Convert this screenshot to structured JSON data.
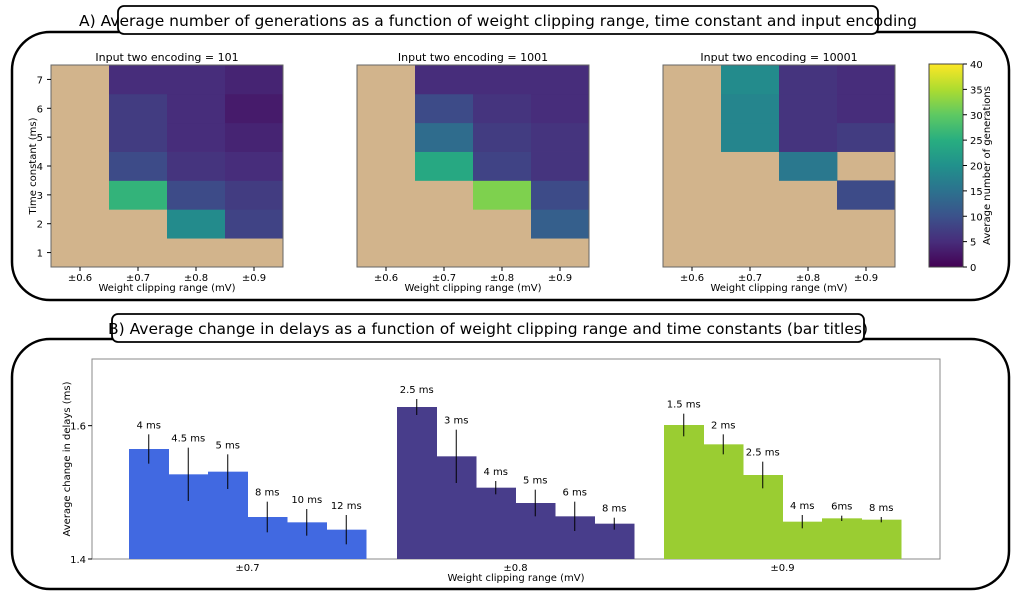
{
  "section_a": {
    "header": "A) Average number of generations as a function of weight clipping range, time constant and input encoding"
  },
  "section_b": {
    "header": "B) Average change in delays as a function of weight clipping range and time constants (bar titles)"
  },
  "colors": {
    "sand": "#d2b48c",
    "blue": "#4169e1",
    "dark_purple": "#483d8b",
    "yellow_green": "#9acd32"
  },
  "chart_data": [
    {
      "type": "heatmap",
      "title": "Input two encoding = 101",
      "xlabel": "Weight clipping range (mV)",
      "ylabel": "Time constant (ms)",
      "x_categories": [
        "±0.6",
        "±0.7",
        "±0.8",
        "±0.9"
      ],
      "y_categories": [
        "1",
        "2",
        "3",
        "4",
        "5",
        "6",
        "7"
      ],
      "missing_color": "#d2b48c",
      "values": [
        [
          null,
          null,
          null,
          null
        ],
        [
          null,
          null,
          19,
          8
        ],
        [
          null,
          26,
          9,
          7
        ],
        [
          null,
          9,
          6,
          5
        ],
        [
          null,
          7,
          5,
          4
        ],
        [
          null,
          7,
          5,
          3
        ],
        [
          null,
          5,
          5,
          4
        ]
      ]
    },
    {
      "type": "heatmap",
      "title": "Input two encoding = 1001",
      "xlabel": "Weight clipping range (mV)",
      "ylabel": "",
      "x_categories": [
        "±0.6",
        "±0.7",
        "±0.8",
        "±0.9"
      ],
      "y_categories": [
        "1",
        "2",
        "3",
        "4",
        "5",
        "6",
        "7"
      ],
      "missing_color": "#d2b48c",
      "values": [
        [
          null,
          null,
          null,
          null
        ],
        [
          null,
          null,
          null,
          12
        ],
        [
          null,
          null,
          32,
          9
        ],
        [
          null,
          24,
          8,
          6
        ],
        [
          null,
          14,
          7,
          6
        ],
        [
          null,
          9,
          6,
          5
        ],
        [
          null,
          5,
          5,
          5
        ]
      ]
    },
    {
      "type": "heatmap",
      "title": "Input two encoding = 10001",
      "xlabel": "Weight clipping range (mV)",
      "ylabel": "",
      "x_categories": [
        "±0.6",
        "±0.7",
        "±0.8",
        "±0.9"
      ],
      "y_categories": [
        "1",
        "2",
        "3",
        "4",
        "5",
        "6",
        "7"
      ],
      "missing_color": "#d2b48c",
      "values": [
        [
          null,
          null,
          null,
          null
        ],
        [
          null,
          null,
          null,
          null
        ],
        [
          null,
          null,
          null,
          9
        ],
        [
          null,
          null,
          16,
          null
        ],
        [
          null,
          18,
          6,
          7
        ],
        [
          null,
          18,
          6,
          5
        ],
        [
          null,
          19,
          6,
          5
        ]
      ]
    },
    {
      "type": "colorbar",
      "label": "Average number of generations",
      "range": [
        0,
        40
      ],
      "ticks": [
        "0",
        "5",
        "10",
        "15",
        "20",
        "25",
        "30",
        "35",
        "40"
      ],
      "colormap": "viridis"
    },
    {
      "type": "bar",
      "xlabel": "Weight clipping range (mV)",
      "ylabel": "Average change in delays (ms)",
      "ylim": [
        1.4,
        1.7
      ],
      "yticks": [
        "1.4",
        "1.6"
      ],
      "groups": [
        {
          "name": "±0.7",
          "color": "#4169e1",
          "bars": [
            {
              "label": "4 ms",
              "value": 1.565,
              "err": 0.022
            },
            {
              "label": "4.5 ms",
              "value": 1.527,
              "err": 0.04
            },
            {
              "label": "5 ms",
              "value": 1.531,
              "err": 0.026
            },
            {
              "label": "8 ms",
              "value": 1.463,
              "err": 0.023
            },
            {
              "label": "10 ms",
              "value": 1.455,
              "err": 0.02
            },
            {
              "label": "12 ms",
              "value": 1.444,
              "err": 0.022
            }
          ]
        },
        {
          "name": "±0.8",
          "color": "#483d8b",
          "bars": [
            {
              "label": "2.5 ms",
              "value": 1.628,
              "err": 0.012
            },
            {
              "label": "3 ms",
              "value": 1.554,
              "err": 0.04
            },
            {
              "label": "4 ms",
              "value": 1.507,
              "err": 0.01
            },
            {
              "label": "5 ms",
              "value": 1.484,
              "err": 0.02
            },
            {
              "label": "6 ms",
              "value": 1.464,
              "err": 0.022
            },
            {
              "label": "8 ms",
              "value": 1.453,
              "err": 0.009
            }
          ]
        },
        {
          "name": "±0.9",
          "color": "#9acd32",
          "bars": [
            {
              "label": "1.5 ms",
              "value": 1.601,
              "err": 0.017
            },
            {
              "label": "2 ms",
              "value": 1.572,
              "err": 0.015
            },
            {
              "label": "2.5 ms",
              "value": 1.526,
              "err": 0.02
            },
            {
              "label": "4 ms",
              "value": 1.456,
              "err": 0.01
            },
            {
              "label": "6ms",
              "value": 1.461,
              "err": 0.004
            },
            {
              "label": "8 ms",
              "value": 1.459,
              "err": 0.004
            }
          ]
        }
      ]
    }
  ]
}
